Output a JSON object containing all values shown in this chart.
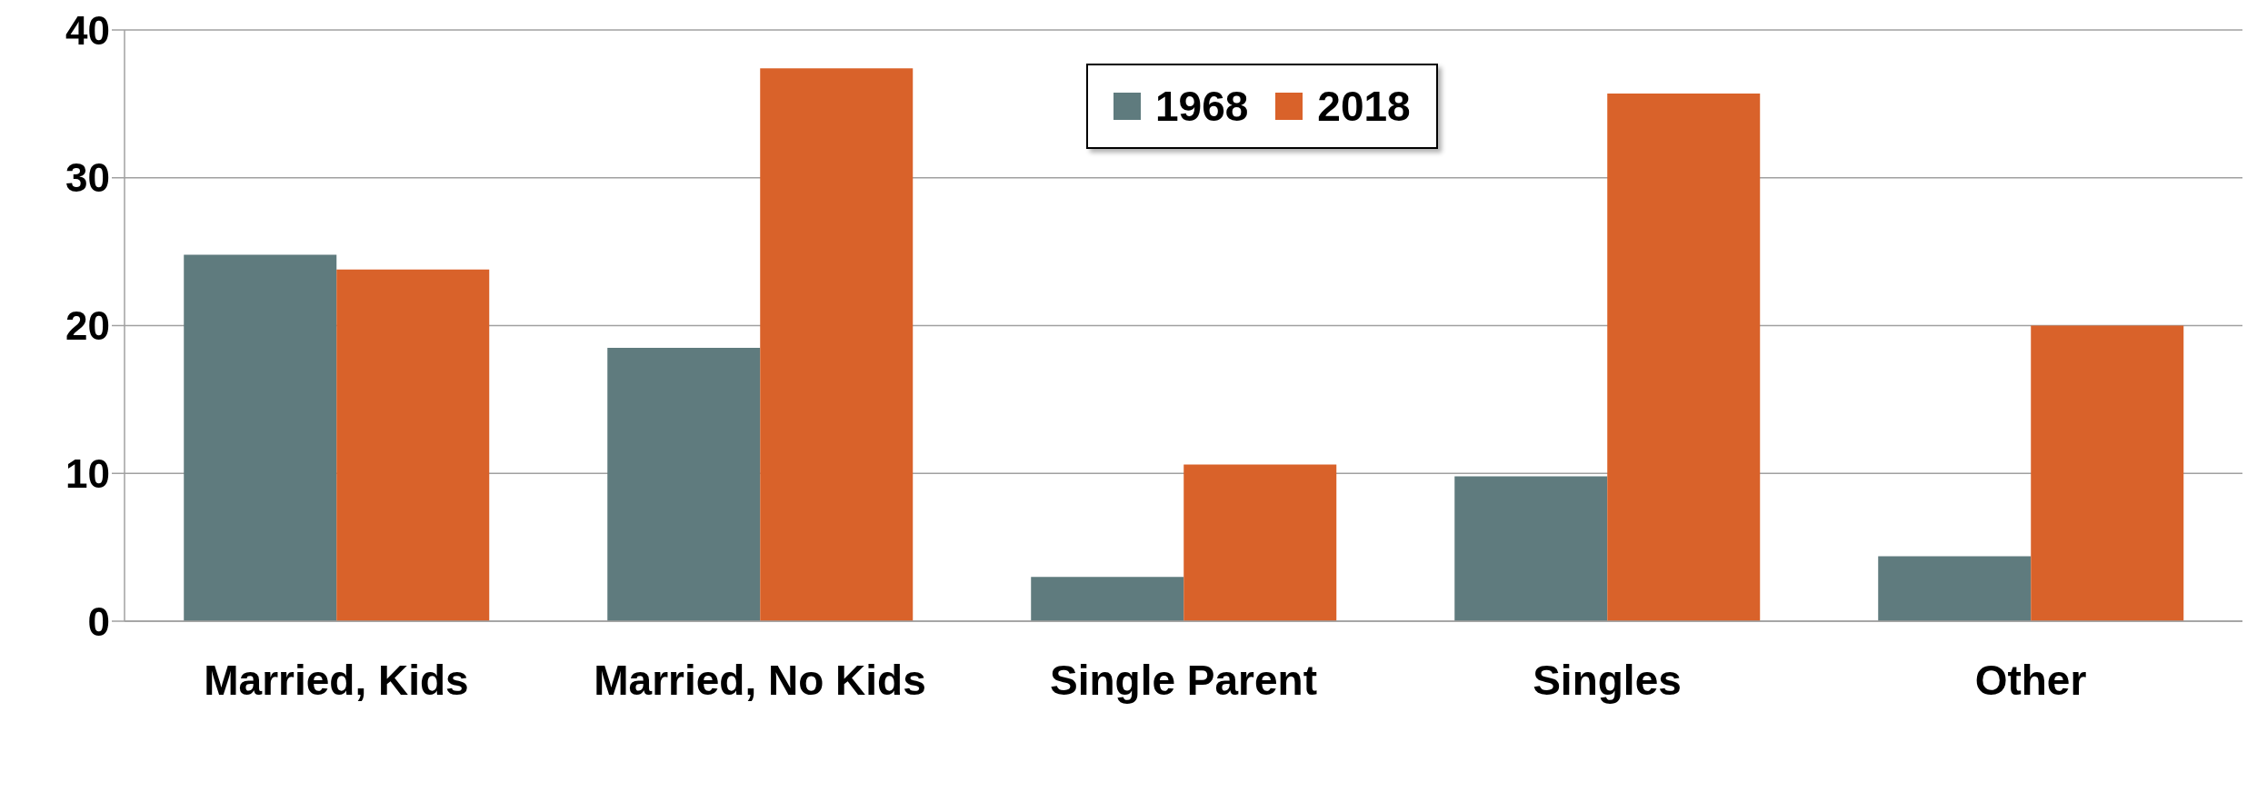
{
  "chart_data": {
    "type": "bar",
    "categories": [
      "Married, Kids",
      "Married, No Kids",
      "Single Parent",
      "Singles",
      "Other"
    ],
    "series": [
      {
        "name": "1968",
        "color": "#5f7b7e",
        "values": [
          24.8,
          18.5,
          3.0,
          9.8,
          4.4
        ]
      },
      {
        "name": "2018",
        "color": "#d9622a",
        "values": [
          23.8,
          37.4,
          10.6,
          35.7,
          20.0
        ]
      }
    ],
    "ylim": [
      0,
      40
    ],
    "yticks": [
      0,
      10,
      20,
      30,
      40
    ],
    "grid": "y",
    "legend": "top"
  }
}
